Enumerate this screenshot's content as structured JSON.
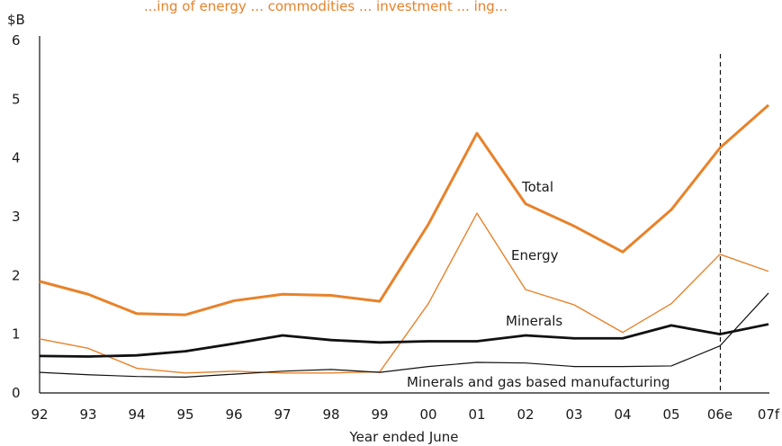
{
  "chart_data": {
    "type": "line",
    "title": "...ing of energy ... commodities ... investment ... ing...",
    "ylabel": "$B",
    "xlabel": "Year ended June",
    "ylim": [
      0,
      6
    ],
    "yticks": [
      0,
      1,
      2,
      3,
      4,
      5,
      6
    ],
    "categories": [
      "92",
      "93",
      "94",
      "95",
      "96",
      "97",
      "98",
      "99",
      "00",
      "01",
      "02",
      "03",
      "04",
      "05",
      "06e",
      "07f"
    ],
    "forecast_divider_after": "06e",
    "grid": false,
    "series": [
      {
        "name": "Total",
        "values": [
          1.9,
          1.68,
          1.35,
          1.33,
          1.57,
          1.68,
          1.66,
          1.56,
          2.87,
          4.42,
          3.22,
          2.84,
          2.4,
          3.12,
          4.17,
          4.9
        ],
        "color": "#E8822A",
        "width": 3
      },
      {
        "name": "Energy",
        "values": [
          0.92,
          0.76,
          0.42,
          0.34,
          0.37,
          0.34,
          0.34,
          0.36,
          1.52,
          3.06,
          1.76,
          1.5,
          1.03,
          1.52,
          2.36,
          2.07
        ],
        "color": "#E8822A",
        "width": 1.4
      },
      {
        "name": "Minerals",
        "values": [
          0.63,
          0.62,
          0.64,
          0.71,
          0.84,
          0.98,
          0.9,
          0.86,
          0.88,
          0.88,
          0.98,
          0.93,
          0.93,
          1.15,
          1.0,
          1.17
        ],
        "color": "#111111",
        "width": 2.8
      },
      {
        "name": "Minerals and gas based manufacturing",
        "values": [
          0.35,
          0.31,
          0.28,
          0.27,
          0.32,
          0.37,
          0.4,
          0.35,
          0.45,
          0.52,
          0.51,
          0.45,
          0.45,
          0.46,
          0.8,
          1.7
        ],
        "color": "#111111",
        "width": 1.2
      }
    ]
  }
}
